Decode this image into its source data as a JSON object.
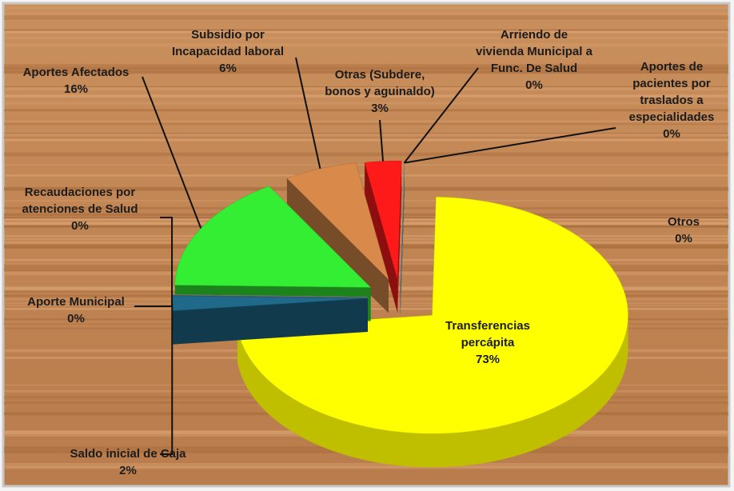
{
  "chart_data": {
    "type": "pie3d",
    "categories": [
      "Transferencias\npercápita",
      "Saldo inicial de Caja",
      "Aporte Municipal",
      "Recaudaciones por\natenciones de Salud",
      "Aportes Afectados",
      "Subsidio por\nIncapacidad laboral",
      "Otras (Subdere,\nbonos y aguinaldo)",
      "Arriendo de\nvivienda Municipal a\nFunc. De Salud",
      "Aportes de\npacientes por\ntraslados a\nespecialidades",
      "Otros"
    ],
    "values": [
      73,
      2,
      0,
      0,
      16,
      6,
      3,
      0,
      0,
      0
    ],
    "value_labels": [
      "73%",
      "2%",
      "0%",
      "0%",
      "16%",
      "6%",
      "3%",
      "0%",
      "0%",
      "0%"
    ],
    "colors": [
      "#ffff00",
      "#1f6a8a",
      "#2fb4ef",
      "#9a9a9a",
      "#33ee33",
      "#d98a4a",
      "#ff1a1a",
      "#a0a0a0",
      "#8a6fb0",
      "#b0b0b0"
    ]
  }
}
